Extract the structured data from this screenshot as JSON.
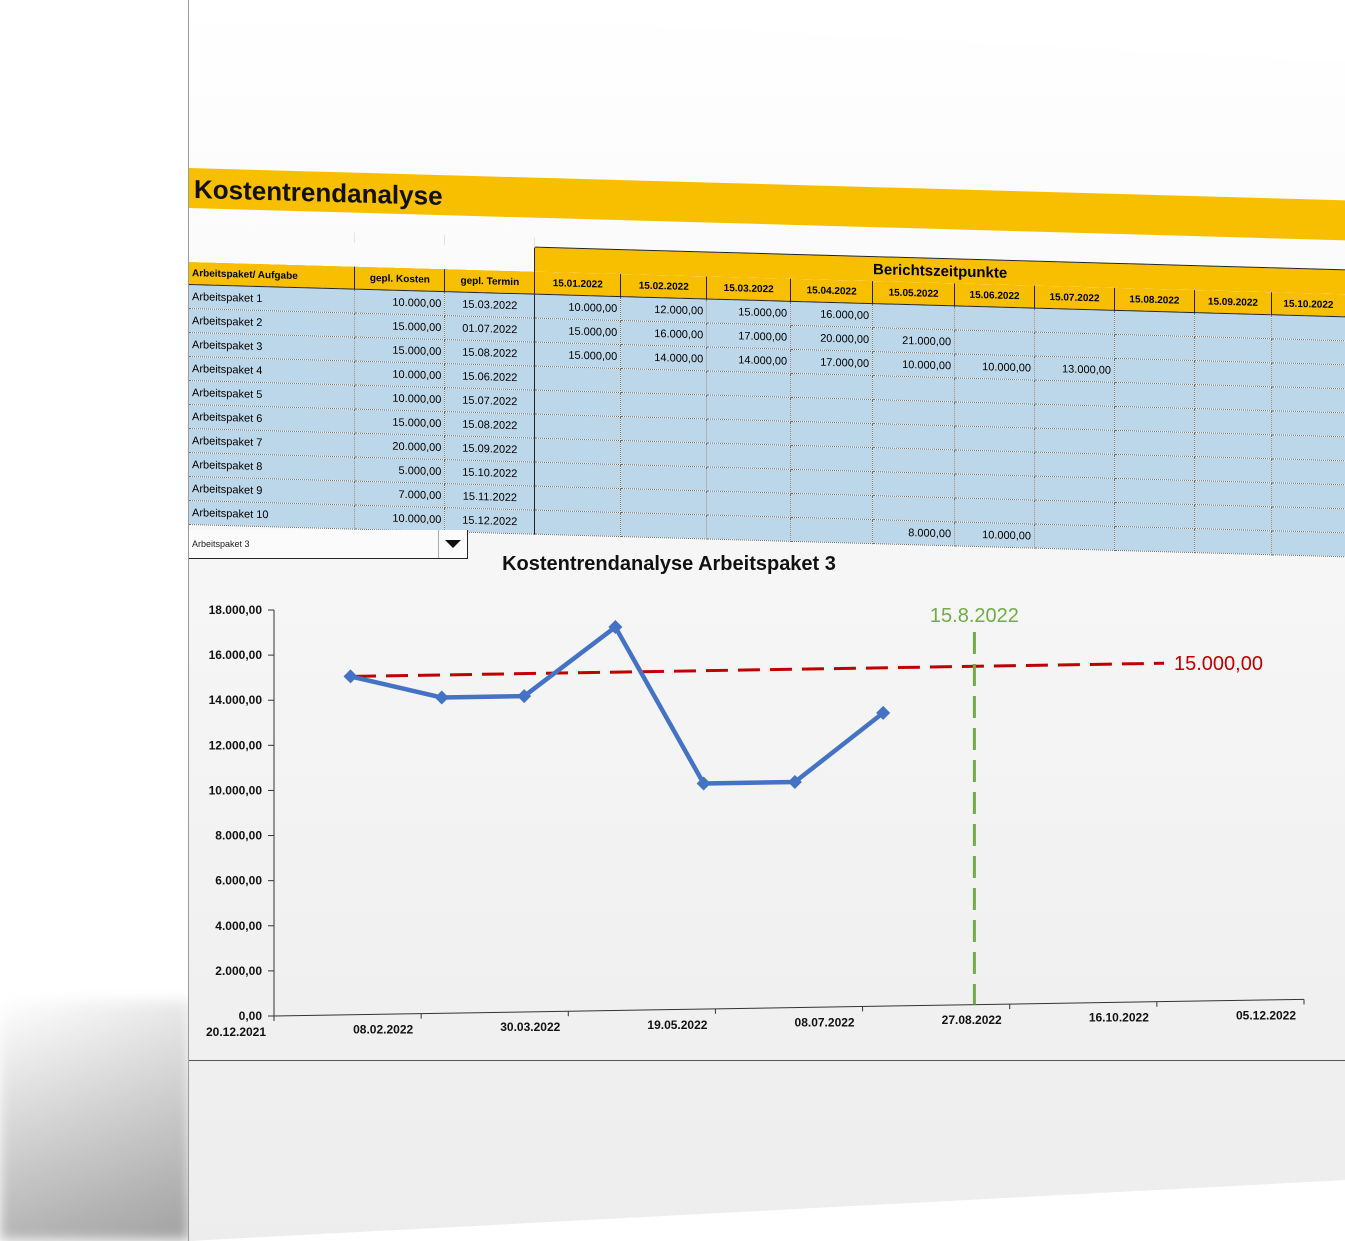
{
  "title": "Kostentrendanalyse",
  "band_label": "Berichtszeitpunkte",
  "columns": {
    "task": "Arbeitspaket/ Aufgabe",
    "cost": "gepl. Kosten",
    "date": "gepl. Termin"
  },
  "report_dates": [
    "15.01.2022",
    "15.02.2022",
    "15.03.2022",
    "15.04.2022",
    "15.05.2022",
    "15.06.2022",
    "15.07.2022",
    "15.08.2022",
    "15.09.2022",
    "15.10.2022"
  ],
  "rows": [
    {
      "name": "Arbeitspaket 1",
      "cost": "10.000,00",
      "date": "15.03.2022",
      "values": [
        "10.000,00",
        "12.000,00",
        "15.000,00",
        "16.000,00",
        "",
        "",
        "",
        "",
        "",
        ""
      ]
    },
    {
      "name": "Arbeitspaket 2",
      "cost": "15.000,00",
      "date": "01.07.2022",
      "values": [
        "15.000,00",
        "16.000,00",
        "17.000,00",
        "20.000,00",
        "21.000,00",
        "",
        "",
        "",
        "",
        ""
      ]
    },
    {
      "name": "Arbeitspaket 3",
      "cost": "15.000,00",
      "date": "15.08.2022",
      "values": [
        "15.000,00",
        "14.000,00",
        "14.000,00",
        "17.000,00",
        "10.000,00",
        "10.000,00",
        "13.000,00",
        "",
        "",
        ""
      ]
    },
    {
      "name": "Arbeitspaket 4",
      "cost": "10.000,00",
      "date": "15.06.2022",
      "values": [
        "",
        "",
        "",
        "",
        "",
        "",
        "",
        "",
        "",
        ""
      ]
    },
    {
      "name": "Arbeitspaket 5",
      "cost": "10.000,00",
      "date": "15.07.2022",
      "values": [
        "",
        "",
        "",
        "",
        "",
        "",
        "",
        "",
        "",
        ""
      ]
    },
    {
      "name": "Arbeitspaket 6",
      "cost": "15.000,00",
      "date": "15.08.2022",
      "values": [
        "",
        "",
        "",
        "",
        "",
        "",
        "",
        "",
        "",
        ""
      ]
    },
    {
      "name": "Arbeitspaket 7",
      "cost": "20.000,00",
      "date": "15.09.2022",
      "values": [
        "",
        "",
        "",
        "",
        "",
        "",
        "",
        "",
        "",
        ""
      ]
    },
    {
      "name": "Arbeitspaket 8",
      "cost": "5.000,00",
      "date": "15.10.2022",
      "values": [
        "",
        "",
        "",
        "",
        "",
        "",
        "",
        "",
        "",
        ""
      ]
    },
    {
      "name": "Arbeitspaket 9",
      "cost": "7.000,00",
      "date": "15.11.2022",
      "values": [
        "",
        "",
        "",
        "",
        "",
        "",
        "",
        "",
        "",
        ""
      ]
    },
    {
      "name": "Arbeitspaket 10",
      "cost": "10.000,00",
      "date": "15.12.2022",
      "values": [
        "",
        "",
        "",
        "",
        "8.000,00",
        "10.000,00",
        "",
        "",
        "",
        ""
      ]
    }
  ],
  "selector": {
    "value": "Arbeitspaket 3"
  },
  "chart_data": {
    "type": "line",
    "title": "Kostentrendanalyse Arbeitspaket 3",
    "x_ticks": [
      "20.12.2021",
      "08.02.2022",
      "30.03.2022",
      "19.05.2022",
      "08.07.2022",
      "27.08.2022",
      "16.10.2022",
      "05.12.2022"
    ],
    "y_ticks": [
      "0,00",
      "2.000,00",
      "4.000,00",
      "6.000,00",
      "8.000,00",
      "10.000,00",
      "12.000,00",
      "14.000,00",
      "16.000,00",
      "18.000,00"
    ],
    "xlim": [
      "2021-12-20",
      "2022-12-05"
    ],
    "ylim": [
      0,
      18000
    ],
    "series": [
      {
        "color": "#4472c4",
        "x": [
          "2022-01-15",
          "2022-02-15",
          "2022-03-15",
          "2022-04-15",
          "2022-05-15",
          "2022-06-15",
          "2022-07-15"
        ],
        "y": [
          15000,
          14000,
          14000,
          17000,
          10000,
          10000,
          13000
        ]
      }
    ],
    "planned_cost": {
      "value": 15000,
      "label": "15.000,00",
      "color": "#c00000"
    },
    "planned_date": {
      "value": "2022-08-15",
      "label": "15.8.2022",
      "color": "#70ad47"
    }
  }
}
